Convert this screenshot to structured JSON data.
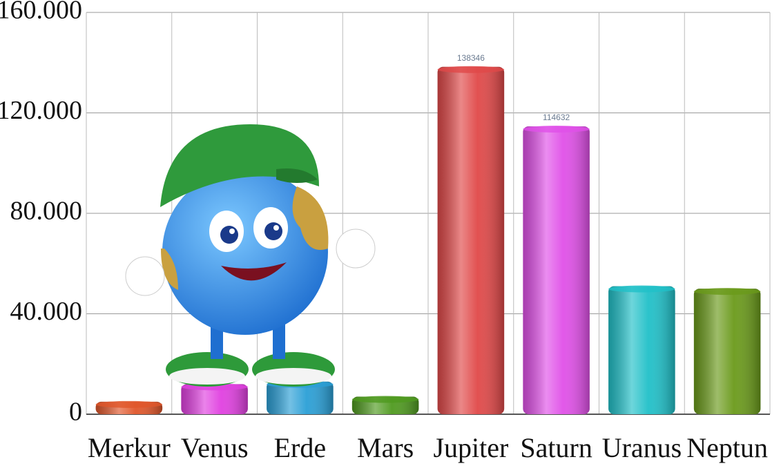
{
  "chart_data": {
    "type": "bar",
    "categories": [
      "Merkur",
      "Venus",
      "Erde",
      "Mars",
      "Jupiter",
      "Saturn",
      "Uranus",
      "Neptun"
    ],
    "values": [
      5000,
      12000,
      13000,
      7000,
      138346,
      114632,
      51000,
      50000
    ],
    "value_labels": [
      null,
      null,
      null,
      null,
      "138346",
      "114632",
      null,
      null
    ],
    "colors": [
      "#e0562a",
      "#e040e0",
      "#2a9fd6",
      "#4f9a1f",
      "#e04848",
      "#e050e8",
      "#20c0c8",
      "#6a9a1a"
    ],
    "ylim": [
      0,
      160000
    ],
    "yticks": [
      0,
      {
        "value": 40000,
        "label": "40.000"
      },
      {
        "value": 80000,
        "label": "80.000"
      },
      {
        "value": 120000,
        "label": "120.000"
      },
      {
        "value": 160000,
        "label": "160.000"
      }
    ],
    "grid": true
  }
}
